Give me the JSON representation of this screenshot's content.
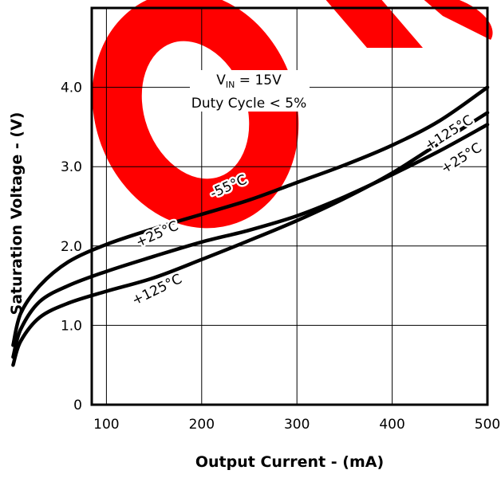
{
  "chart_data": {
    "type": "line",
    "title": "",
    "xlabel": "Output Current - (mA)",
    "ylabel": "Saturation Voltage - (V)",
    "xlim": [
      0,
      500
    ],
    "ylim": [
      0,
      5.0
    ],
    "x_ticks": [
      100,
      200,
      300,
      400,
      500
    ],
    "x_tick_labels": [
      "100",
      "200",
      "300",
      "400",
      "500"
    ],
    "y_ticks": [
      0,
      1.0,
      2.0,
      3.0,
      4.0
    ],
    "y_tick_labels": [
      "0",
      "1.0",
      "2.0",
      "3.0",
      "4.0"
    ],
    "grid": true,
    "annotation": {
      "line1_prefix": "V",
      "line1_subscript": "IN",
      "line1_suffix": " = 15V",
      "line2": "Duty Cycle < 5%"
    },
    "series": [
      {
        "name": "-55°C",
        "x": [
          2,
          10,
          30,
          60,
          100,
          150,
          200,
          250,
          300,
          350,
          400,
          450,
          500
        ],
        "y": [
          0.75,
          1.15,
          1.5,
          1.8,
          2.02,
          2.22,
          2.4,
          2.58,
          2.8,
          3.02,
          3.27,
          3.58,
          4.0
        ]
      },
      {
        "name": "+25°C",
        "x": [
          2,
          10,
          30,
          60,
          100,
          150,
          200,
          250,
          300,
          350,
          400,
          450,
          500
        ],
        "y": [
          0.6,
          0.95,
          1.3,
          1.5,
          1.68,
          1.87,
          2.05,
          2.2,
          2.38,
          2.62,
          2.9,
          3.2,
          3.53
        ]
      },
      {
        "name": "+125°C",
        "x": [
          2,
          10,
          30,
          60,
          100,
          150,
          200,
          250,
          300,
          350,
          400,
          450,
          500
        ],
        "y": [
          0.5,
          0.8,
          1.1,
          1.28,
          1.43,
          1.6,
          1.83,
          2.07,
          2.32,
          2.6,
          2.92,
          3.3,
          3.68
        ]
      }
    ],
    "curve_labels": [
      {
        "text": "-55°C",
        "x": 230,
        "y": 2.7,
        "angle": -24
      },
      {
        "text": "+25°C",
        "x": 155,
        "y": 2.1,
        "angle": -24
      },
      {
        "text": "+125°C",
        "x": 155,
        "y": 1.4,
        "angle": -26
      },
      {
        "text": "+125°C",
        "x": 462,
        "y": 3.38,
        "angle": -32
      },
      {
        "text": "+25°C",
        "x": 475,
        "y": 3.06,
        "angle": -32
      }
    ],
    "watermark": "ob",
    "watermark_color": "#ff0000"
  }
}
